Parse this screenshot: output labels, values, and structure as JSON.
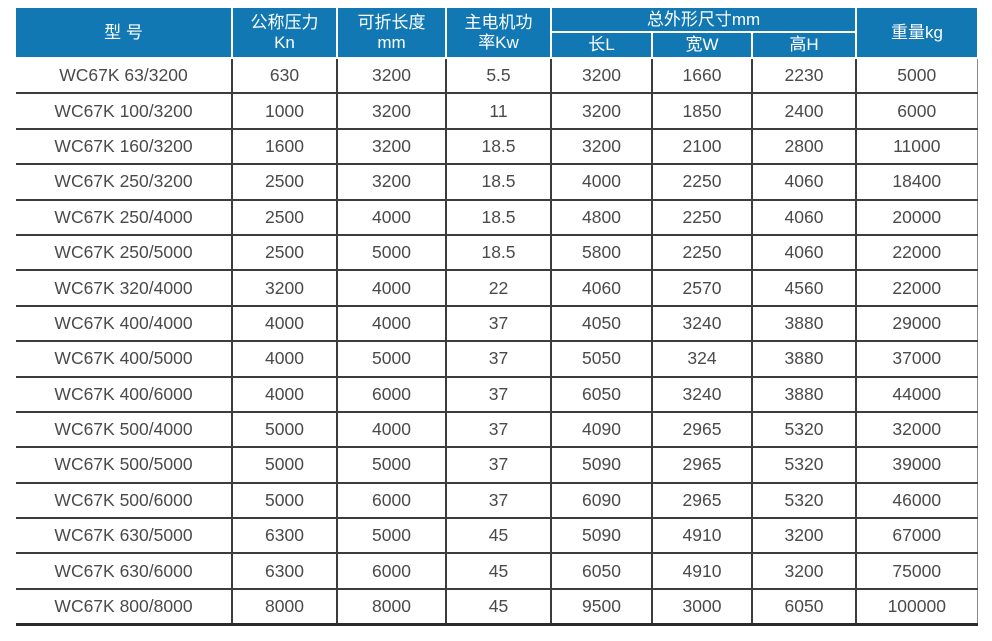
{
  "colors": {
    "header_bg": "#1278b4",
    "header_text": "#ffffff",
    "body_text": "#4a4a4a",
    "grid_line": "#3c3c3c"
  },
  "table": {
    "header": {
      "model": "型 号",
      "pressure_line1": "公称压力",
      "pressure_line2": "Kn",
      "fold_length_line1": "可折长度",
      "fold_length_line2": "mm",
      "motor_power_line1": "主电机功",
      "motor_power_line2": "率Kw",
      "dimensions_group": "总外形尺寸mm",
      "dim_length": "长L",
      "dim_width": "宽W",
      "dim_height": "高H",
      "weight": "重量kg"
    },
    "rows": [
      [
        "WC67K 63/3200",
        "630",
        "3200",
        "5.5",
        "3200",
        "1660",
        "2230",
        "5000"
      ],
      [
        "WC67K 100/3200",
        "1000",
        "3200",
        "11",
        "3200",
        "1850",
        "2400",
        "6000"
      ],
      [
        "WC67K 160/3200",
        "1600",
        "3200",
        "18.5",
        "3200",
        "2100",
        "2800",
        "11000"
      ],
      [
        "WC67K 250/3200",
        "2500",
        "3200",
        "18.5",
        "4000",
        "2250",
        "4060",
        "18400"
      ],
      [
        "WC67K 250/4000",
        "2500",
        "4000",
        "18.5",
        "4800",
        "2250",
        "4060",
        "20000"
      ],
      [
        "WC67K 250/5000",
        "2500",
        "5000",
        "18.5",
        "5800",
        "2250",
        "4060",
        "22000"
      ],
      [
        "WC67K 320/4000",
        "3200",
        "4000",
        "22",
        "4060",
        "2570",
        "4560",
        "22000"
      ],
      [
        "WC67K 400/4000",
        "4000",
        "4000",
        "37",
        "4050",
        "3240",
        "3880",
        "29000"
      ],
      [
        "WC67K 400/5000",
        "4000",
        "5000",
        "37",
        "5050",
        "324",
        "3880",
        "37000"
      ],
      [
        "WC67K 400/6000",
        "4000",
        "6000",
        "37",
        "6050",
        "3240",
        "3880",
        "44000"
      ],
      [
        "WC67K 500/4000",
        "5000",
        "4000",
        "37",
        "4090",
        "2965",
        "5320",
        "32000"
      ],
      [
        "WC67K 500/5000",
        "5000",
        "5000",
        "37",
        "5090",
        "2965",
        "5320",
        "39000"
      ],
      [
        "WC67K 500/6000",
        "5000",
        "6000",
        "37",
        "6090",
        "2965",
        "5320",
        "46000"
      ],
      [
        "WC67K 630/5000",
        "6300",
        "5000",
        "45",
        "5090",
        "4910",
        "3200",
        "67000"
      ],
      [
        "WC67K 630/6000",
        "6300",
        "6000",
        "45",
        "6050",
        "4910",
        "3200",
        "75000"
      ],
      [
        "WC67K 800/8000",
        "8000",
        "8000",
        "45",
        "9500",
        "3000",
        "6050",
        "100000"
      ]
    ]
  }
}
